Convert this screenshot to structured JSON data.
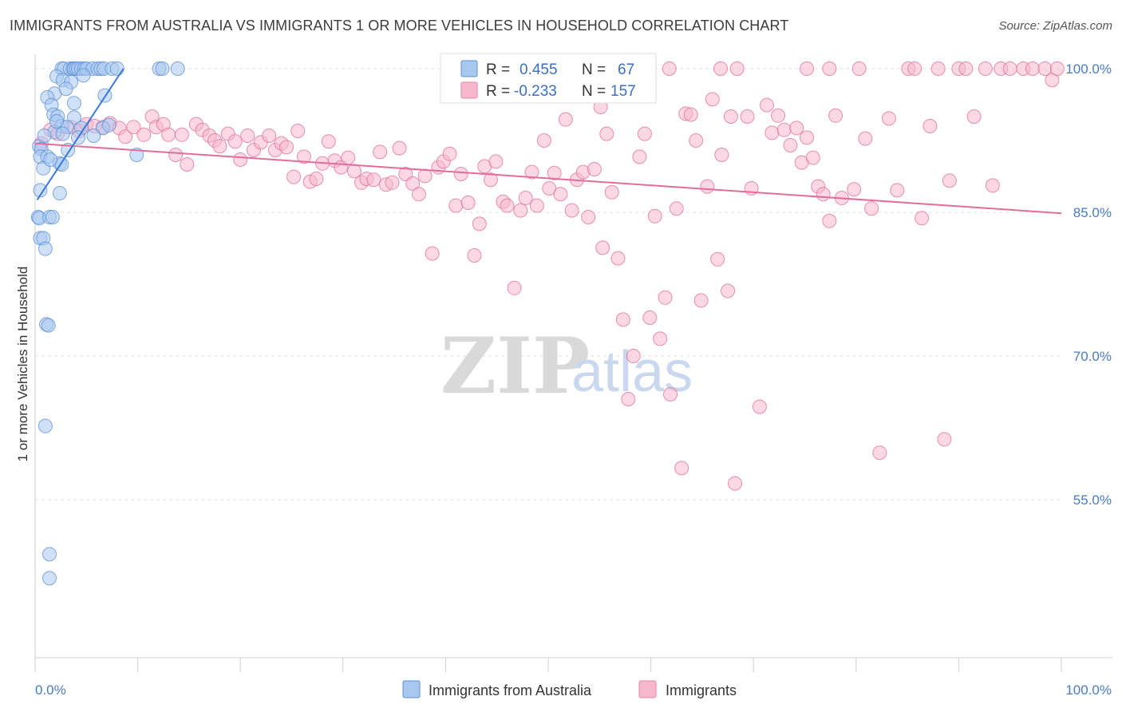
{
  "title": "IMMIGRANTS FROM AUSTRALIA VS IMMIGRANTS 1 OR MORE VEHICLES IN HOUSEHOLD CORRELATION CHART",
  "source": "Source: ZipAtlas.com",
  "watermark": {
    "zip": "ZIP",
    "atlas": "atlas"
  },
  "legend": {
    "r_label": "R =",
    "n_label": "N =",
    "rows": [
      {
        "r": "0.455",
        "n": "67",
        "fill": "#a9c8f0",
        "stroke": "#5a8fd6"
      },
      {
        "r": "-0.233",
        "n": "157",
        "fill": "#f7b8cd",
        "stroke": "#e884a6"
      }
    ]
  },
  "chart_data": {
    "type": "scatter",
    "title": "IMMIGRANTS FROM AUSTRALIA VS IMMIGRANTS 1 OR MORE VEHICLES IN HOUSEHOLD CORRELATION CHART",
    "xlabel": "",
    "ylabel": "1 or more Vehicles in Household",
    "x_tick_labels": [
      "0.0%",
      "100.0%"
    ],
    "y_tick_labels": [
      "100.0%",
      "85.0%",
      "70.0%",
      "55.0%"
    ],
    "y_ticks": [
      100,
      85,
      70,
      55
    ],
    "xlim": [
      0,
      100
    ],
    "ylim": [
      38.5,
      101.5
    ],
    "grid": true,
    "legend_position": "bottom-center",
    "colors": {
      "blue": "#5a8fd6",
      "blue_fill": "#a9c8f0",
      "pink": "#e26d9a",
      "pink_fill": "#f7b8cd",
      "tick": "#4a7bc8"
    },
    "series": [
      {
        "name": "Immigrants from Australia",
        "color": "#5a8fd6",
        "fill": "#a9c8f0",
        "trend": {
          "x": [
            0.2,
            8.6
          ],
          "y": [
            86.3,
            100.0
          ]
        },
        "points": [
          [
            2.6,
            100
          ],
          [
            2.8,
            100
          ],
          [
            3.4,
            100
          ],
          [
            3.7,
            100
          ],
          [
            3.8,
            100
          ],
          [
            4.0,
            100
          ],
          [
            4.2,
            100
          ],
          [
            4.5,
            100
          ],
          [
            4.8,
            100
          ],
          [
            5.0,
            100
          ],
          [
            5.6,
            100
          ],
          [
            6.1,
            100
          ],
          [
            6.4,
            100
          ],
          [
            6.7,
            100
          ],
          [
            7.5,
            100
          ],
          [
            8.0,
            100
          ],
          [
            12.1,
            100
          ],
          [
            12.4,
            100
          ],
          [
            13.9,
            100
          ],
          [
            2.1,
            99.2
          ],
          [
            2.7,
            98.8
          ],
          [
            3.5,
            98.6
          ],
          [
            4.7,
            99.3
          ],
          [
            1.9,
            97.4
          ],
          [
            1.2,
            97.0
          ],
          [
            1.6,
            96.2
          ],
          [
            3.8,
            96.4
          ],
          [
            6.8,
            97.2
          ],
          [
            1.8,
            95.2
          ],
          [
            2.2,
            95.0
          ],
          [
            3.8,
            94.9
          ],
          [
            2.6,
            94.0
          ],
          [
            3.1,
            93.9
          ],
          [
            4.5,
            93.8
          ],
          [
            6.6,
            93.8
          ],
          [
            7.2,
            94.1
          ],
          [
            1.9,
            93.4
          ],
          [
            2.7,
            93.2
          ],
          [
            5.7,
            93.0
          ],
          [
            0.4,
            91.9
          ],
          [
            0.6,
            91.6
          ],
          [
            3.2,
            91.5
          ],
          [
            9.9,
            91.0
          ],
          [
            0.5,
            90.8
          ],
          [
            1.2,
            90.8
          ],
          [
            2.4,
            90.1
          ],
          [
            2.6,
            90.0
          ],
          [
            0.8,
            89.6
          ],
          [
            0.5,
            87.3
          ],
          [
            2.4,
            87.0
          ],
          [
            0.3,
            84.5
          ],
          [
            0.4,
            84.4
          ],
          [
            1.4,
            84.5
          ],
          [
            1.7,
            84.5
          ],
          [
            0.5,
            82.3
          ],
          [
            0.8,
            82.3
          ],
          [
            1.0,
            81.2
          ],
          [
            1.1,
            73.3
          ],
          [
            1.3,
            73.2
          ],
          [
            1.0,
            62.7
          ],
          [
            1.4,
            49.3
          ],
          [
            1.4,
            46.8
          ],
          [
            2.1,
            94.5
          ],
          [
            1.5,
            90.5
          ],
          [
            4.2,
            92.8
          ],
          [
            3.0,
            97.9
          ],
          [
            0.9,
            93.0
          ]
        ]
      },
      {
        "name": "Immigrants",
        "color": "#e26d9a",
        "fill": "#f7b8cd",
        "trend": {
          "x": [
            0,
            100
          ],
          "y": [
            92.2,
            84.9
          ]
        },
        "points": [
          [
            0.6,
            92.2
          ],
          [
            1.5,
            93.6
          ],
          [
            2.2,
            93.2
          ],
          [
            3.5,
            93.9
          ],
          [
            4.3,
            93.5
          ],
          [
            5.0,
            94.2
          ],
          [
            5.8,
            94.0
          ],
          [
            6.6,
            93.9
          ],
          [
            7.3,
            94.3
          ],
          [
            8.2,
            93.8
          ],
          [
            8.8,
            92.9
          ],
          [
            9.6,
            93.9
          ],
          [
            10.6,
            93.1
          ],
          [
            11.4,
            95.0
          ],
          [
            11.8,
            93.9
          ],
          [
            12.5,
            94.2
          ],
          [
            13.0,
            93.1
          ],
          [
            13.7,
            91.0
          ],
          [
            14.3,
            93.1
          ],
          [
            14.8,
            90.0
          ],
          [
            15.7,
            94.2
          ],
          [
            16.3,
            93.6
          ],
          [
            17.0,
            93.0
          ],
          [
            17.5,
            92.5
          ],
          [
            18.0,
            91.9
          ],
          [
            18.8,
            93.2
          ],
          [
            19.5,
            92.4
          ],
          [
            20.0,
            90.5
          ],
          [
            20.7,
            93.0
          ],
          [
            21.3,
            91.5
          ],
          [
            22.0,
            92.3
          ],
          [
            22.8,
            93.0
          ],
          [
            23.4,
            91.5
          ],
          [
            24.0,
            92.2
          ],
          [
            24.5,
            91.8
          ],
          [
            25.2,
            88.7
          ],
          [
            25.6,
            93.5
          ],
          [
            26.2,
            90.8
          ],
          [
            26.8,
            88.2
          ],
          [
            27.4,
            88.5
          ],
          [
            28.0,
            90.1
          ],
          [
            28.6,
            92.4
          ],
          [
            29.2,
            90.4
          ],
          [
            29.8,
            89.7
          ],
          [
            30.5,
            90.7
          ],
          [
            31.1,
            89.3
          ],
          [
            31.8,
            88.1
          ],
          [
            32.3,
            88.5
          ],
          [
            33.0,
            88.4
          ],
          [
            33.6,
            91.3
          ],
          [
            34.2,
            87.9
          ],
          [
            34.8,
            88.1
          ],
          [
            35.5,
            91.7
          ],
          [
            36.1,
            89.0
          ],
          [
            36.8,
            88.0
          ],
          [
            37.4,
            86.9
          ],
          [
            38.0,
            88.8
          ],
          [
            38.7,
            80.7
          ],
          [
            39.3,
            89.7
          ],
          [
            39.8,
            90.3
          ],
          [
            40.4,
            91.1
          ],
          [
            41.0,
            85.7
          ],
          [
            41.5,
            89.0
          ],
          [
            42.2,
            86.0
          ],
          [
            42.8,
            80.5
          ],
          [
            43.3,
            83.8
          ],
          [
            43.8,
            89.8
          ],
          [
            44.4,
            88.4
          ],
          [
            44.9,
            90.3
          ],
          [
            45.6,
            86.1
          ],
          [
            46.0,
            85.7
          ],
          [
            46.7,
            77.1
          ],
          [
            47.3,
            85.2
          ],
          [
            47.8,
            86.5
          ],
          [
            48.4,
            89.2
          ],
          [
            48.9,
            85.7
          ],
          [
            49.6,
            92.5
          ],
          [
            50.1,
            87.5
          ],
          [
            50.6,
            89.1
          ],
          [
            51.2,
            86.9
          ],
          [
            51.7,
            94.7
          ],
          [
            52.3,
            85.2
          ],
          [
            52.8,
            88.4
          ],
          [
            53.4,
            89.2
          ],
          [
            53.9,
            84.5
          ],
          [
            54.5,
            89.5
          ],
          [
            55.1,
            96.0
          ],
          [
            55.7,
            93.2
          ],
          [
            56.2,
            87.1
          ],
          [
            56.8,
            80.2
          ],
          [
            57.3,
            73.8
          ],
          [
            57.8,
            65.5
          ],
          [
            58.3,
            70.0
          ],
          [
            58.9,
            90.8
          ],
          [
            59.4,
            93.2
          ],
          [
            59.9,
            74.0
          ],
          [
            60.4,
            84.6
          ],
          [
            60.9,
            71.8
          ],
          [
            61.4,
            76.1
          ],
          [
            61.9,
            66.0
          ],
          [
            62.5,
            85.4
          ],
          [
            63.0,
            58.3
          ],
          [
            63.4,
            95.3
          ],
          [
            63.9,
            95.2
          ],
          [
            64.4,
            92.5
          ],
          [
            64.9,
            75.8
          ],
          [
            65.5,
            87.7
          ],
          [
            66.0,
            96.8
          ],
          [
            66.5,
            80.1
          ],
          [
            66.9,
            91.0
          ],
          [
            67.5,
            76.8
          ],
          [
            67.8,
            95.0
          ],
          [
            68.2,
            56.7
          ],
          [
            69.4,
            95.0
          ],
          [
            69.8,
            87.5
          ],
          [
            70.6,
            64.7
          ],
          [
            71.3,
            96.2
          ],
          [
            71.8,
            93.3
          ],
          [
            72.4,
            95.1
          ],
          [
            73.0,
            93.6
          ],
          [
            73.6,
            92.0
          ],
          [
            74.2,
            93.8
          ],
          [
            74.7,
            90.2
          ],
          [
            75.2,
            92.8
          ],
          [
            75.8,
            90.7
          ],
          [
            76.3,
            87.7
          ],
          [
            76.8,
            86.9
          ],
          [
            77.4,
            84.1
          ],
          [
            78.0,
            95.1
          ],
          [
            78.6,
            86.5
          ],
          [
            79.8,
            87.4
          ],
          [
            80.9,
            92.7
          ],
          [
            81.5,
            85.4
          ],
          [
            82.3,
            59.9
          ],
          [
            83.2,
            94.8
          ],
          [
            84.0,
            87.3
          ],
          [
            85.1,
            100
          ],
          [
            85.7,
            100
          ],
          [
            86.4,
            84.4
          ],
          [
            87.2,
            94.0
          ],
          [
            88.0,
            100
          ],
          [
            88.6,
            61.3
          ],
          [
            89.1,
            88.3
          ],
          [
            90.0,
            100
          ],
          [
            90.7,
            100
          ],
          [
            91.5,
            95.0
          ],
          [
            92.6,
            100
          ],
          [
            93.3,
            87.8
          ],
          [
            94.1,
            100
          ],
          [
            95.0,
            100
          ],
          [
            96.3,
            100
          ],
          [
            97.2,
            100
          ],
          [
            98.4,
            100
          ],
          [
            99.1,
            98.8
          ],
          [
            99.6,
            100
          ],
          [
            80.3,
            100
          ],
          [
            77.4,
            100
          ],
          [
            68.4,
            100
          ],
          [
            66.8,
            100
          ],
          [
            61.8,
            100
          ],
          [
            47.2,
            100
          ],
          [
            45.5,
            100
          ],
          [
            75.2,
            100
          ],
          [
            55.3,
            81.3
          ]
        ]
      }
    ]
  },
  "bottom_legend": [
    {
      "label": "Immigrants from Australia"
    },
    {
      "label": "Immigrants"
    }
  ]
}
